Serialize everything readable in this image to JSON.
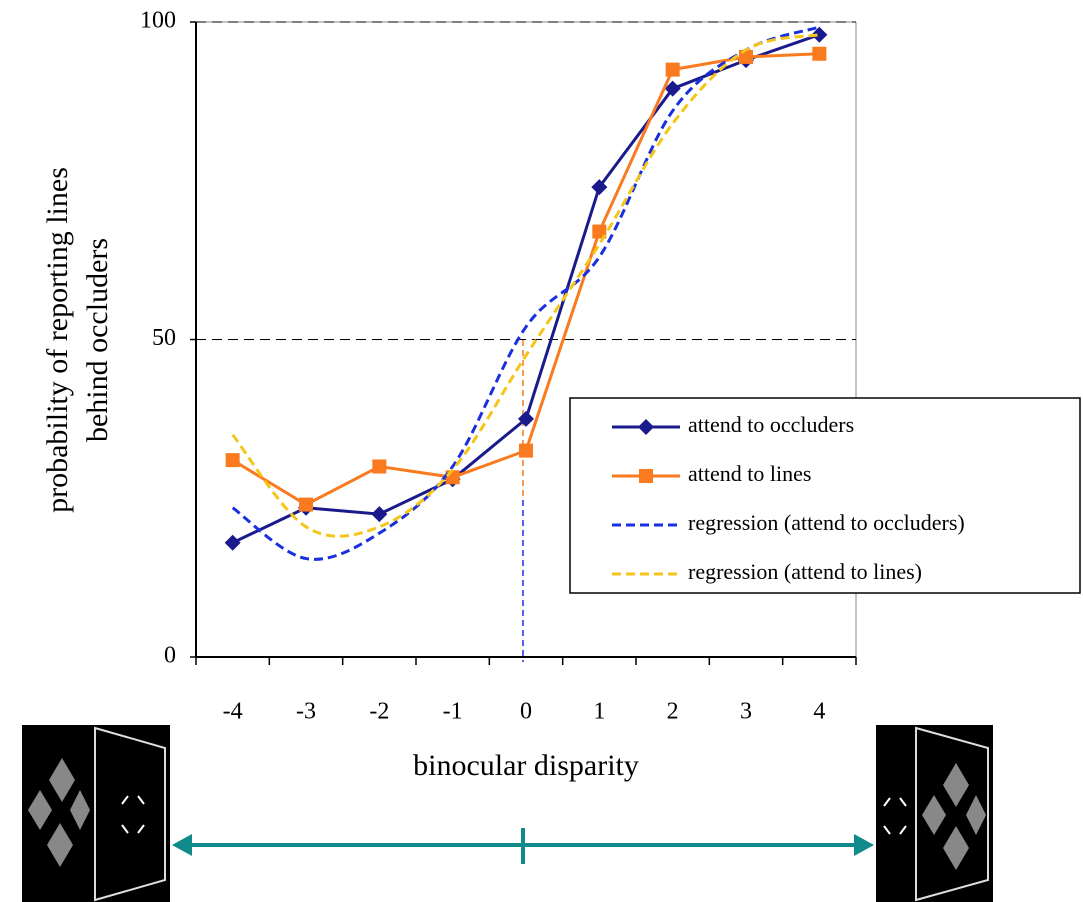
{
  "chart_data": {
    "type": "line",
    "y_label": [
      "probability of reporting lines",
      "behind occluders"
    ],
    "x_label": "binocular disparity",
    "categories": [
      "-4",
      "-3",
      "-2",
      "-1",
      "0",
      "1",
      "2",
      "3",
      "4"
    ],
    "series": [
      {
        "name": "attend to occluders",
        "color": "#1a1a8c",
        "marker": "diamond",
        "style": "solid",
        "values": [
          18,
          23.5,
          22.5,
          28,
          37.5,
          74,
          89.5,
          94,
          98
        ]
      },
      {
        "name": "attend to lines",
        "color": "#f97a1f",
        "marker": "square",
        "style": "solid",
        "values": [
          31,
          24,
          30,
          28.3,
          32.5,
          67,
          92.5,
          94.5,
          95
        ]
      },
      {
        "name": "regression (attend to occluders)",
        "color": "#1a2fe0",
        "style": "dashed",
        "values": [
          23.5,
          15.5,
          19.5,
          30,
          52,
          63,
          86,
          95.6,
          99.2
        ]
      },
      {
        "name": "regression (attend to lines)",
        "color": "#f5c518",
        "style": "dashed",
        "values": [
          35,
          20.5,
          20.5,
          29.5,
          47.5,
          65,
          84,
          95.6,
          98
        ]
      }
    ],
    "ylim": [
      0,
      100
    ],
    "yticks": [
      0,
      50,
      100
    ],
    "grid": true
  }
}
